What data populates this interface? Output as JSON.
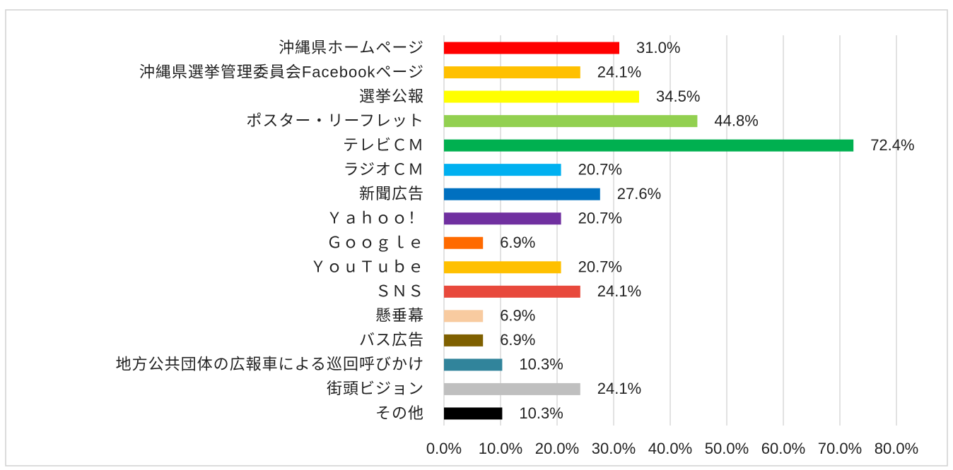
{
  "chart_data": {
    "type": "bar",
    "orientation": "horizontal",
    "categories": [
      "沖縄県ホームページ",
      "沖縄県選挙管理委員会Facebookページ",
      "選挙公報",
      "ポスター・リーフレット",
      "テレビＣＭ",
      "ラジオＣＭ",
      "新聞広告",
      "Ｙａｈｏｏ！",
      "Ｇｏｏｇｌｅ",
      "ＹｏｕＴｕｂｅ",
      "ＳＮＳ",
      "懸垂幕",
      "バス広告",
      "地方公共団体の広報車による巡回呼びかけ",
      "街頭ビジョン",
      "その他"
    ],
    "values": [
      31.0,
      24.1,
      34.5,
      44.8,
      72.4,
      20.7,
      27.6,
      20.7,
      6.9,
      20.7,
      24.1,
      6.9,
      6.9,
      10.3,
      24.1,
      10.3
    ],
    "value_labels": [
      "31.0%",
      "24.1%",
      "34.5%",
      "44.8%",
      "72.4%",
      "20.7%",
      "27.6%",
      "20.7%",
      "6.9%",
      "20.7%",
      "24.1%",
      "6.9%",
      "6.9%",
      "10.3%",
      "24.1%",
      "10.3%"
    ],
    "colors": [
      "#ff0000",
      "#ffc000",
      "#ffff00",
      "#92d050",
      "#00b050",
      "#00b0f0",
      "#0070c0",
      "#7030a0",
      "#ff6a00",
      "#ffc000",
      "#e8493c",
      "#f8cba0",
      "#7f6000",
      "#31849b",
      "#bfbfbf",
      "#000000"
    ],
    "xlim": [
      0,
      80
    ],
    "xticks": [
      {
        "value": 0,
        "label": "0.0%"
      },
      {
        "value": 10,
        "label": "10.0%"
      },
      {
        "value": 20,
        "label": "20.0%"
      },
      {
        "value": 30,
        "label": "30.0%"
      },
      {
        "value": 40,
        "label": "40.0%"
      },
      {
        "value": 50,
        "label": "50.0%"
      },
      {
        "value": 60,
        "label": "60.0%"
      },
      {
        "value": 70,
        "label": "70.0%"
      },
      {
        "value": 80,
        "label": "80.0%"
      }
    ],
    "grid": true
  }
}
